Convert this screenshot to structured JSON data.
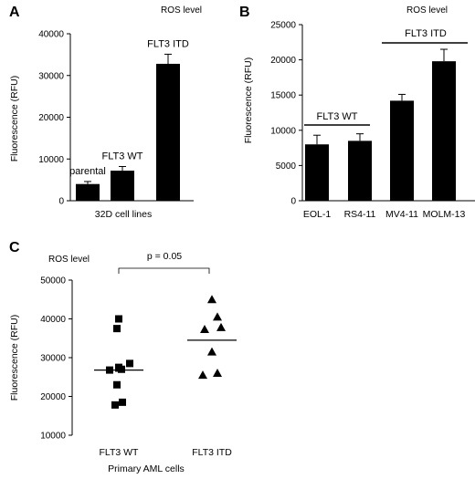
{
  "chart_data": [
    {
      "panel": "A",
      "type": "bar",
      "title": "ROS level",
      "xlabel": "32D cell lines",
      "ylabel": "Fluorescence (RFU)",
      "ylim": [
        0,
        40000
      ],
      "yticks": [
        "0",
        "10000",
        "20000",
        "30000",
        "40000"
      ],
      "categories": [
        "parental",
        "FLT3 WT",
        "FLT3 ITD"
      ],
      "values": [
        4000,
        7200,
        32800
      ],
      "errors": [
        600,
        1000,
        2300
      ],
      "bar_color": "#000000"
    },
    {
      "panel": "B",
      "type": "bar",
      "title": "ROS level",
      "ylabel": "Fluorescence (RFU)",
      "ylim": [
        0,
        25000
      ],
      "yticks": [
        "0",
        "5000",
        "10000",
        "15000",
        "20000",
        "25000"
      ],
      "categories": [
        "EOL-1",
        "RS4-11",
        "MV4-11",
        "MOLM-13"
      ],
      "values": [
        8000,
        8500,
        14200,
        19800
      ],
      "errors": [
        1300,
        1000,
        900,
        1700
      ],
      "groups": [
        "FLT3 WT",
        "FLT3 ITD"
      ],
      "bar_color": "#000000"
    },
    {
      "panel": "C",
      "type": "scatter",
      "title": "ROS level",
      "xlabel": "Primary AML cells",
      "ylabel": "Fluorescence (RFU)",
      "ylim": [
        10000,
        50000
      ],
      "yticks": [
        "10000",
        "20000",
        "30000",
        "40000",
        "50000"
      ],
      "categories": [
        "FLT3 WT",
        "FLT3 ITD"
      ],
      "annotation": "p = 0.05",
      "series": [
        {
          "category": "FLT3 WT",
          "marker": "square",
          "mean": 26800,
          "values": [
            40000,
            37500,
            27500,
            26800,
            27300,
            28500,
            23000,
            18500,
            17800,
            27000
          ]
        },
        {
          "category": "FLT3 ITD",
          "marker": "triangle",
          "mean": 34500,
          "values": [
            45000,
            40500,
            37300,
            37800,
            26000,
            25500,
            31500
          ]
        }
      ]
    }
  ]
}
